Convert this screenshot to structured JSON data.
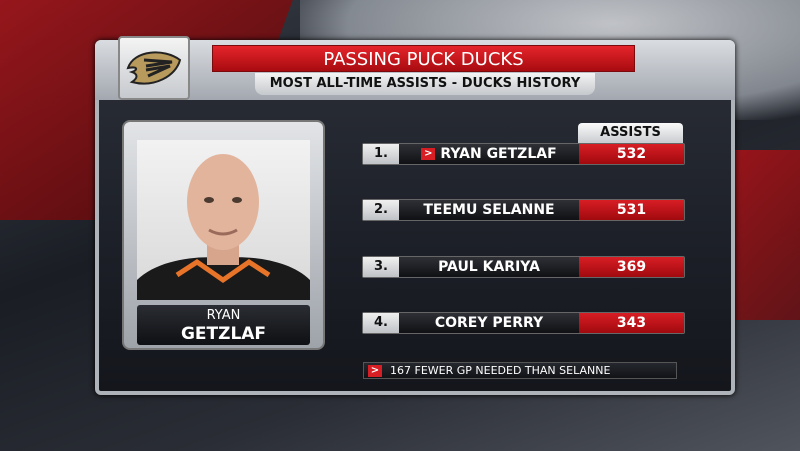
{
  "title": "PASSING PUCK DUCKS",
  "subtitle": "MOST ALL-TIME ASSISTS - DUCKS HISTORY",
  "player": {
    "first": "RYAN",
    "last": "GETZLAF"
  },
  "column_header": "ASSISTS",
  "rows": [
    {
      "rank": "1.",
      "name": "RYAN GETZLAF",
      "value": "532",
      "highlighted": true
    },
    {
      "rank": "2.",
      "name": "TEEMU SELANNE",
      "value": "531"
    },
    {
      "rank": "3.",
      "name": "PAUL KARIYA",
      "value": "369"
    },
    {
      "rank": "4.",
      "name": "COREY PERRY",
      "value": "343"
    }
  ],
  "note": "167 FEWER GP NEEDED THAN SELANNE",
  "colors": {
    "accent_red": "#d81e25",
    "logo_gold": "#b89a5c"
  },
  "icons": {
    "logo": "anaheim-ducks-logo",
    "marker": "chevron-right-icon"
  }
}
